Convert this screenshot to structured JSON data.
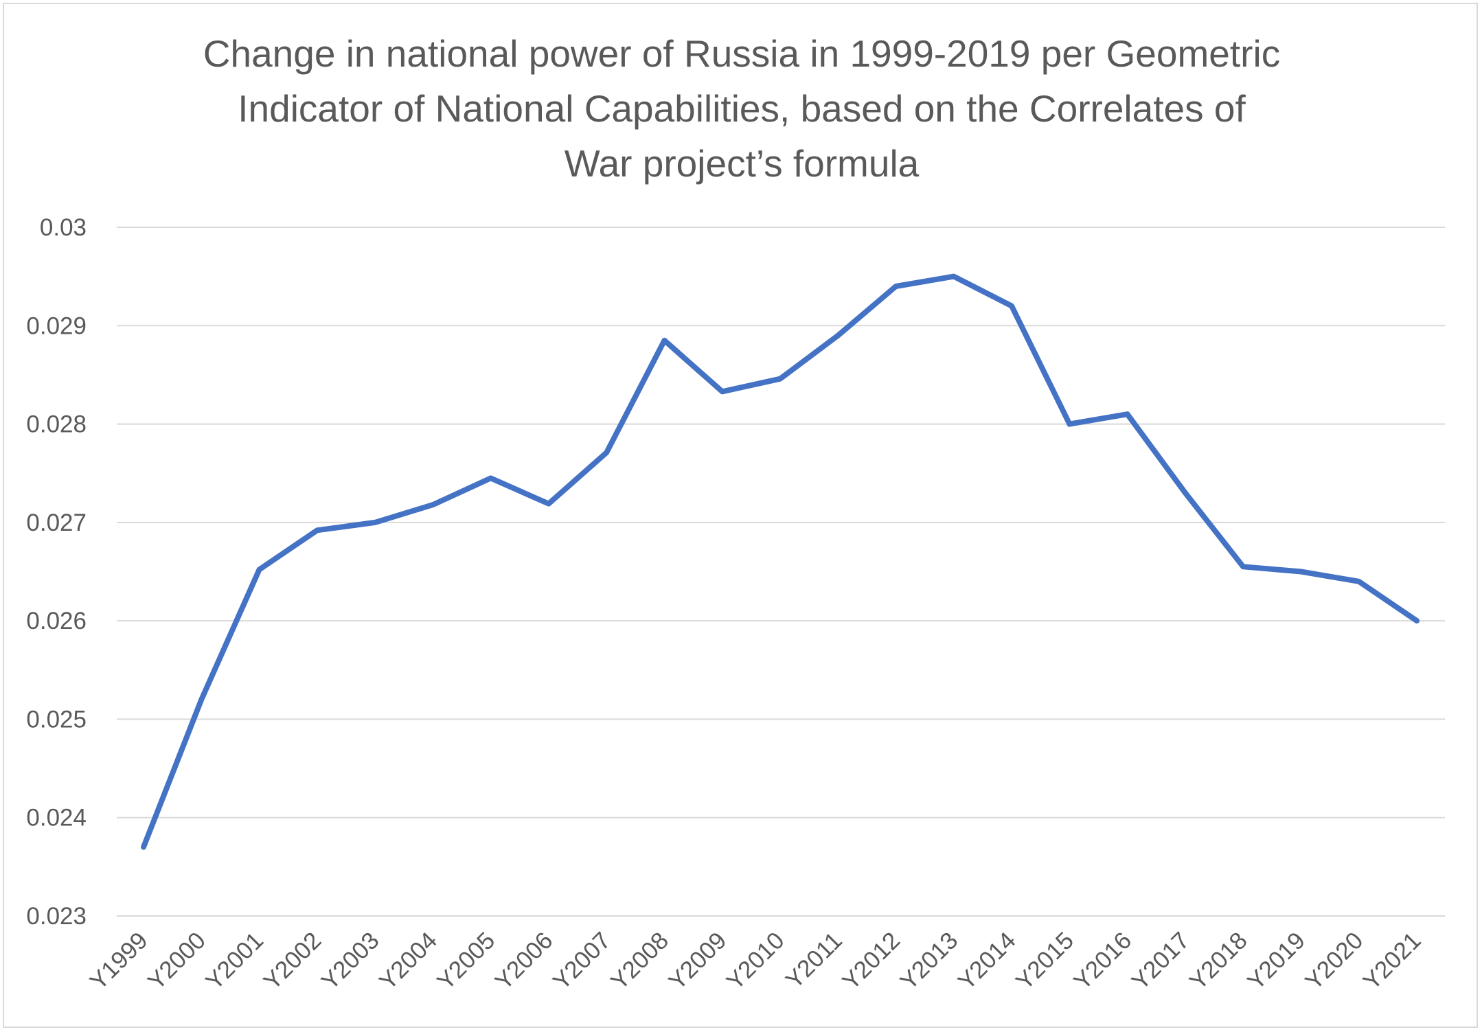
{
  "chart_data": {
    "type": "line",
    "title_lines": [
      "Change in national power of Russia in 1999-2019 per Geometric",
      "Indicator of National Capabilities, based on the Correlates of",
      "War project’s formula"
    ],
    "xlabel": "",
    "ylabel": "",
    "categories": [
      "Y1999",
      "Y2000",
      "Y2001",
      "Y2002",
      "Y2003",
      "Y2004",
      "Y2005",
      "Y2006",
      "Y2007",
      "Y2008",
      "Y2009",
      "Y2010",
      "Y2011",
      "Y2012",
      "Y2013",
      "Y2014",
      "Y2015",
      "Y2016",
      "Y2017",
      "Y2018",
      "Y2019",
      "Y2020",
      "Y2021"
    ],
    "series": [
      {
        "values": [
          0.0237,
          0.0252,
          0.02652,
          0.02692,
          0.027,
          0.02718,
          0.02745,
          0.02719,
          0.02771,
          0.02885,
          0.02833,
          0.02846,
          0.0289,
          0.0294,
          0.0295,
          0.0292,
          0.028,
          0.0281,
          0.0273,
          0.02655,
          0.0265,
          0.0264,
          0.026
        ],
        "color": "#4472c4"
      }
    ],
    "ylim": [
      0.023,
      0.03
    ],
    "yticks": [
      "0.023",
      "0.024",
      "0.025",
      "0.026",
      "0.027",
      "0.028",
      "0.029",
      "0.03"
    ],
    "grid": true,
    "legend": "none",
    "colors": {
      "gridline": "#d9d9d9",
      "text": "#595959",
      "line": "#4472c4"
    }
  }
}
